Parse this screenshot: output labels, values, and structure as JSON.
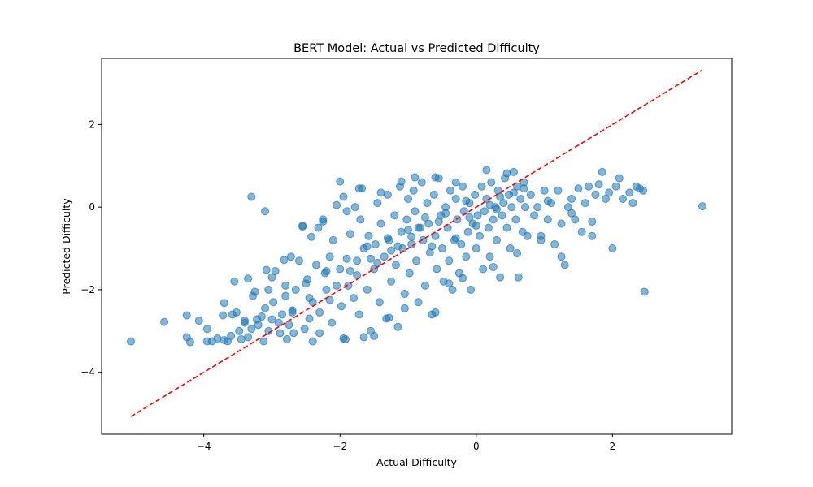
{
  "chart_data": {
    "type": "scatter",
    "title": "BERT Model: Actual vs Predicted Difficulty",
    "xlabel": "Actual Difficulty",
    "ylabel": "Predicted Difficulty",
    "xlim": [
      -5.5,
      3.75
    ],
    "ylim": [
      -5.5,
      3.6
    ],
    "x_ticks": [
      -4,
      -2,
      0,
      2
    ],
    "y_ticks": [
      -4,
      -2,
      0,
      2
    ],
    "x_tick_labels": [
      "−4",
      "−2",
      "0",
      "2"
    ],
    "y_tick_labels": [
      "−4",
      "−2",
      "0",
      "2"
    ],
    "grid": false,
    "legend": "none",
    "colors": {
      "points": "#1f77b4",
      "reference_line": "#ff0000"
    },
    "reference_line": {
      "style": "dashed",
      "x": [
        -5.07,
        3.32
      ],
      "y": [
        -5.07,
        3.32
      ]
    },
    "series": [
      {
        "points": [
          [
            -5.07,
            -3.25
          ],
          [
            -4.58,
            -2.78
          ],
          [
            -4.25,
            -2.62
          ],
          [
            -4.25,
            -3.15
          ],
          [
            -4.2,
            -3.27
          ],
          [
            -4.07,
            -2.75
          ],
          [
            -3.95,
            -2.95
          ],
          [
            -3.95,
            -3.25
          ],
          [
            -3.88,
            -3.25
          ],
          [
            -3.8,
            -3.18
          ],
          [
            -3.7,
            -3.22
          ],
          [
            -3.65,
            -3.25
          ],
          [
            -3.6,
            -3.12
          ],
          [
            -3.72,
            -2.62
          ],
          [
            -3.7,
            -2.32
          ],
          [
            -3.58,
            -2.6
          ],
          [
            -3.55,
            -1.8
          ],
          [
            -3.52,
            -2.55
          ],
          [
            -3.48,
            -3.0
          ],
          [
            -3.45,
            -3.2
          ],
          [
            -3.4,
            -2.8
          ],
          [
            -3.35,
            -1.73
          ],
          [
            -3.3,
            -2.95
          ],
          [
            -3.3,
            0.25
          ],
          [
            -3.28,
            -2.15
          ],
          [
            -3.22,
            -2.72
          ],
          [
            -3.2,
            -2.85
          ],
          [
            -3.15,
            -2.65
          ],
          [
            -3.12,
            -3.25
          ],
          [
            -3.1,
            -0.1
          ],
          [
            -3.05,
            -2.0
          ],
          [
            -3.0,
            -1.7
          ],
          [
            -2.98,
            -2.3
          ],
          [
            -2.95,
            -1.55
          ],
          [
            -2.9,
            -2.8
          ],
          [
            -2.88,
            -3.05
          ],
          [
            -2.85,
            -2.6
          ],
          [
            -2.8,
            -1.9
          ],
          [
            -2.78,
            -3.2
          ],
          [
            -2.72,
            -1.2
          ],
          [
            -2.7,
            -2.5
          ],
          [
            -2.65,
            -2.0
          ],
          [
            -2.6,
            -1.3
          ],
          [
            -2.55,
            -0.45
          ],
          [
            -2.52,
            -2.95
          ],
          [
            -2.48,
            -1.75
          ],
          [
            -2.45,
            -2.2
          ],
          [
            -2.42,
            -0.72
          ],
          [
            -2.4,
            -3.25
          ],
          [
            -2.35,
            -1.4
          ],
          [
            -2.32,
            -0.5
          ],
          [
            -2.3,
            -2.55
          ],
          [
            -2.25,
            -0.3
          ],
          [
            -2.22,
            -1.6
          ],
          [
            -2.2,
            -2.0
          ],
          [
            -2.15,
            -1.2
          ],
          [
            -2.12,
            -2.8
          ],
          [
            -2.1,
            -0.8
          ],
          [
            -2.05,
            0.05
          ],
          [
            -2.0,
            -1.5
          ],
          [
            -1.98,
            -2.4
          ],
          [
            -1.95,
            0.25
          ],
          [
            -1.92,
            -3.2
          ],
          [
            -1.9,
            -0.1
          ],
          [
            -1.88,
            -1.9
          ],
          [
            -1.85,
            -0.65
          ],
          [
            -1.8,
            -2.2
          ],
          [
            -1.78,
            0.0
          ],
          [
            -1.75,
            -1.3
          ],
          [
            -1.72,
            -2.6
          ],
          [
            -1.7,
            -0.3
          ],
          [
            -1.68,
            0.45
          ],
          [
            -1.65,
            -1.0
          ],
          [
            -1.6,
            -2.0
          ],
          [
            -1.58,
            -0.7
          ],
          [
            -1.55,
            -3.0
          ],
          [
            -1.5,
            -1.5
          ],
          [
            -1.48,
            -0.9
          ],
          [
            -1.45,
            0.1
          ],
          [
            -1.42,
            -2.3
          ],
          [
            -1.4,
            -0.4
          ],
          [
            -1.35,
            -1.2
          ],
          [
            -1.32,
            -2.7
          ],
          [
            -1.3,
            0.3
          ],
          [
            -1.28,
            -0.8
          ],
          [
            -1.25,
            -1.8
          ],
          [
            -1.2,
            -0.2
          ],
          [
            -1.18,
            -1.4
          ],
          [
            -1.15,
            -2.9
          ],
          [
            -1.12,
            0.5
          ],
          [
            -1.1,
            -0.6
          ],
          [
            -1.08,
            -1.0
          ],
          [
            -1.05,
            -2.1
          ],
          [
            -1.02,
            -0.3
          ],
          [
            -1.0,
            0.2
          ],
          [
            -0.98,
            -1.6
          ],
          [
            -0.95,
            -0.9
          ],
          [
            -0.92,
            0.4
          ],
          [
            -0.9,
            -0.1
          ],
          [
            -0.88,
            -1.3
          ],
          [
            -0.85,
            -2.3
          ],
          [
            -0.82,
            -0.5
          ],
          [
            -0.8,
            0.6
          ],
          [
            -0.78,
            -0.8
          ],
          [
            -0.75,
            -1.9
          ],
          [
            -0.72,
            0.1
          ],
          [
            -0.7,
            -0.4
          ],
          [
            -0.68,
            -1.1
          ],
          [
            -0.65,
            -2.6
          ],
          [
            -0.62,
            0.3
          ],
          [
            -0.6,
            -0.7
          ],
          [
            -0.58,
            -1.5
          ],
          [
            -0.55,
            0.7
          ],
          [
            -0.52,
            -0.2
          ],
          [
            -0.5,
            -1.0
          ],
          [
            -0.48,
            -1.8
          ],
          [
            -0.45,
            0.0
          ],
          [
            -0.42,
            -0.5
          ],
          [
            -0.4,
            -1.3
          ],
          [
            -0.38,
            0.4
          ],
          [
            -0.35,
            -2.0
          ],
          [
            -0.32,
            -0.8
          ],
          [
            -0.3,
            0.2
          ],
          [
            -0.28,
            -0.3
          ],
          [
            -0.25,
            -1.6
          ],
          [
            -0.22,
            -0.9
          ],
          [
            -0.2,
            0.5
          ],
          [
            -0.18,
            -0.1
          ],
          [
            -0.15,
            -1.2
          ],
          [
            -0.12,
            -0.6
          ],
          [
            -0.1,
            0.1
          ],
          [
            -0.08,
            -2.0
          ],
          [
            -0.05,
            -0.4
          ],
          [
            -0.02,
            0.3
          ],
          [
            0.0,
            -1.0
          ],
          [
            0.02,
            -0.2
          ],
          [
            0.05,
            -0.7
          ],
          [
            0.08,
            0.5
          ],
          [
            0.1,
            -1.5
          ],
          [
            0.12,
            -0.1
          ],
          [
            0.15,
            0.2
          ],
          [
            0.18,
            -0.5
          ],
          [
            0.2,
            -1.2
          ],
          [
            0.22,
            0.6
          ],
          [
            0.25,
            -0.3
          ],
          [
            0.28,
            0.0
          ],
          [
            0.3,
            -0.8
          ],
          [
            0.32,
            0.4
          ],
          [
            0.35,
            -1.7
          ],
          [
            0.38,
            -0.2
          ],
          [
            0.4,
            0.1
          ],
          [
            0.42,
            0.7
          ],
          [
            0.45,
            -0.5
          ],
          [
            0.48,
            0.3
          ],
          [
            0.5,
            -1.0
          ],
          [
            0.52,
            0.0
          ],
          [
            0.55,
            0.85
          ],
          [
            0.58,
            -0.3
          ],
          [
            0.6,
            0.5
          ],
          [
            0.62,
            -1.7
          ],
          [
            0.65,
            0.2
          ],
          [
            0.68,
            -0.6
          ],
          [
            0.7,
            0.6
          ],
          [
            0.72,
            0.0
          ],
          [
            0.75,
            -0.7
          ],
          [
            0.8,
            0.3
          ],
          [
            0.85,
            -0.2
          ],
          [
            0.9,
            0.0
          ],
          [
            0.95,
            -0.8
          ],
          [
            1.0,
            0.4
          ],
          [
            1.05,
            -0.3
          ],
          [
            1.1,
            0.1
          ],
          [
            1.15,
            -0.9
          ],
          [
            1.2,
            0.4
          ],
          [
            1.25,
            -1.2
          ],
          [
            1.3,
            -1.4
          ],
          [
            1.35,
            0.0
          ],
          [
            1.4,
            0.2
          ],
          [
            1.45,
            -0.3
          ],
          [
            1.5,
            0.45
          ],
          [
            1.55,
            -0.6
          ],
          [
            1.6,
            0.1
          ],
          [
            1.65,
            0.5
          ],
          [
            1.7,
            -0.7
          ],
          [
            1.75,
            0.3
          ],
          [
            1.8,
            0.55
          ],
          [
            1.85,
            0.85
          ],
          [
            1.9,
            0.2
          ],
          [
            1.95,
            0.35
          ],
          [
            2.0,
            -1.0
          ],
          [
            2.05,
            0.5
          ],
          [
            2.1,
            0.7
          ],
          [
            2.15,
            0.2
          ],
          [
            2.25,
            0.35
          ],
          [
            2.3,
            0.1
          ],
          [
            2.35,
            0.5
          ],
          [
            2.4,
            0.45
          ],
          [
            2.45,
            0.4
          ],
          [
            2.47,
            -2.05
          ],
          [
            3.32,
            0.02
          ],
          [
            -0.9,
            0.72
          ],
          [
            -0.6,
            0.72
          ],
          [
            -0.3,
            0.6
          ],
          [
            0.15,
            0.9
          ],
          [
            0.45,
            0.82
          ],
          [
            -1.1,
            0.62
          ],
          [
            -1.4,
            0.35
          ],
          [
            -2.0,
            0.62
          ],
          [
            -1.72,
            0.45
          ],
          [
            -2.25,
            -0.35
          ],
          [
            -2.55,
            -0.47
          ],
          [
            -2.82,
            -1.28
          ],
          [
            -3.08,
            -1.52
          ],
          [
            -3.25,
            -2.05
          ],
          [
            -3.0,
            -2.72
          ],
          [
            -2.68,
            -3.05
          ],
          [
            -2.3,
            -3.05
          ],
          [
            -1.95,
            -3.18
          ],
          [
            -1.65,
            -3.15
          ],
          [
            -1.5,
            -3.12
          ],
          [
            -1.28,
            -2.68
          ],
          [
            -1.05,
            -2.45
          ],
          [
            -0.6,
            -2.55
          ],
          [
            -0.4,
            -1.85
          ],
          [
            -0.2,
            -1.72
          ],
          [
            0.25,
            -1.45
          ],
          [
            0.6,
            -1.12
          ],
          [
            0.95,
            -0.7
          ],
          [
            1.25,
            -0.4
          ],
          [
            -0.65,
            -0.95
          ],
          [
            -0.85,
            -0.5
          ],
          [
            -1.15,
            -0.95
          ],
          [
            -1.45,
            -1.35
          ],
          [
            -1.75,
            -1.65
          ],
          [
            -2.05,
            -1.9
          ],
          [
            -2.4,
            -2.3
          ],
          [
            -2.7,
            -2.55
          ],
          [
            -0.3,
            -0.75
          ],
          [
            0.0,
            -0.45
          ],
          [
            0.3,
            -0.05
          ],
          [
            -0.45,
            -0.15
          ],
          [
            -0.75,
            -0.25
          ],
          [
            -1.0,
            -0.55
          ],
          [
            -1.3,
            -0.75
          ],
          [
            -1.6,
            -0.95
          ],
          [
            -1.9,
            -1.25
          ],
          [
            -2.2,
            -1.55
          ],
          [
            -2.5,
            -1.85
          ],
          [
            -2.8,
            -2.15
          ],
          [
            -3.1,
            -2.45
          ],
          [
            -3.4,
            -2.75
          ],
          [
            0.55,
            0.35
          ],
          [
            0.2,
            0.05
          ],
          [
            -0.1,
            -0.25
          ],
          [
            -0.55,
            -0.35
          ],
          [
            -0.95,
            -0.72
          ],
          [
            -1.25,
            -1.05
          ],
          [
            -1.55,
            -1.25
          ],
          [
            -1.85,
            -1.55
          ],
          [
            -2.15,
            -2.25
          ],
          [
            -2.45,
            -2.7
          ],
          [
            -2.75,
            -2.85
          ],
          [
            -3.05,
            -3.0
          ],
          [
            -3.35,
            -3.15
          ],
          [
            -0.15,
            0.15
          ],
          [
            0.35,
            0.25
          ],
          [
            0.7,
            0.45
          ],
          [
            1.05,
            0.15
          ],
          [
            1.4,
            -0.15
          ],
          [
            1.7,
            -0.35
          ]
        ]
      }
    ]
  }
}
